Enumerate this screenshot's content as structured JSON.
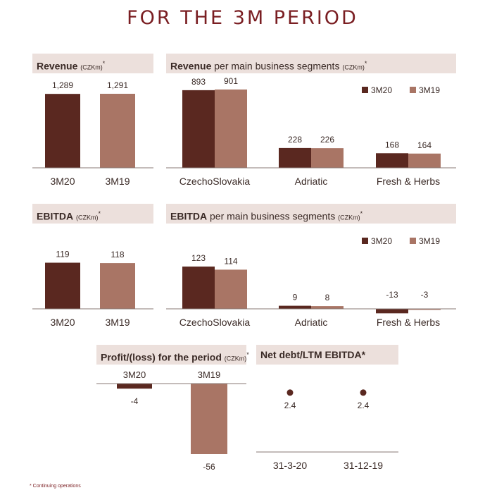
{
  "page_title": "FOR THE 3M PERIOD",
  "colors": {
    "dark": "#5a2820",
    "light": "#a97565",
    "header_bg": "#ece0dc",
    "title": "#7a1e22"
  },
  "footnote": "* Continuing operations",
  "legend": {
    "a": "3M20",
    "b": "3M19"
  },
  "chart_data": [
    {
      "id": "revenue",
      "type": "bar",
      "title": "Revenue",
      "unit": "(CZKm)",
      "star": "*",
      "categories": [
        "3M20",
        "3M19"
      ],
      "values": [
        1289,
        1291
      ],
      "labels": [
        "1,289",
        "1,291"
      ],
      "ylim": [
        0,
        1500
      ]
    },
    {
      "id": "revenue_seg",
      "type": "bar",
      "title": "Revenue",
      "title_rest": "per main business segments",
      "unit": "(CZKm)",
      "star": "*",
      "categories": [
        "CzechoSlovakia",
        "Adriatic",
        "Fresh & Herbs"
      ],
      "series": [
        {
          "name": "3M20",
          "values": [
            893,
            228,
            168
          ]
        },
        {
          "name": "3M19",
          "values": [
            901,
            226,
            164
          ]
        }
      ],
      "ylim": [
        0,
        1030
      ]
    },
    {
      "id": "ebitda",
      "type": "bar",
      "title": "EBITDA",
      "unit": "(CZKm)",
      "star": "*",
      "categories": [
        "3M20",
        "3M19"
      ],
      "values": [
        119,
        118
      ],
      "labels": [
        "119",
        "118"
      ],
      "ylim": [
        0,
        140
      ]
    },
    {
      "id": "ebitda_seg",
      "type": "bar",
      "title": "EBITDA",
      "title_rest": "per main business segments",
      "unit": "(CZKm)",
      "star": "*",
      "categories": [
        "CzechoSlovakia",
        "Adriatic",
        "Fresh & Herbs"
      ],
      "series": [
        {
          "name": "3M20",
          "values": [
            123,
            9,
            -13
          ]
        },
        {
          "name": "3M19",
          "values": [
            114,
            8,
            -3
          ]
        }
      ],
      "ylim": [
        -20,
        140
      ]
    },
    {
      "id": "profit",
      "type": "bar",
      "title": "Profit/(loss) for the period",
      "unit": "(CZKm)",
      "star": "*",
      "categories": [
        "3M20",
        "3M19"
      ],
      "values": [
        -4,
        -56
      ],
      "labels": [
        "-4",
        "-56"
      ],
      "ylim": [
        -60,
        0
      ]
    },
    {
      "id": "netdebt",
      "type": "scatter",
      "title": "Net debt/LTM EBITDA*",
      "categories": [
        "31-3-20",
        "31-12-19"
      ],
      "values": [
        2.4,
        2.4
      ],
      "labels": [
        "2.4",
        "2.4"
      ],
      "ylim": [
        0,
        3
      ]
    }
  ]
}
